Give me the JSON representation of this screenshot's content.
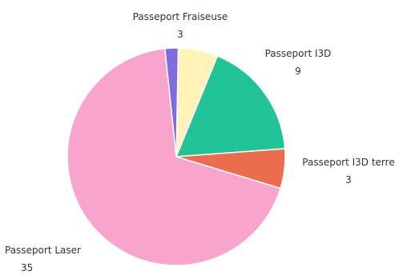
{
  "chart_data": {
    "type": "pie",
    "slices": [
      {
        "label": "Passeport Fraiseuse",
        "value": 3,
        "color": "#FFF3B8"
      },
      {
        "label": "Passeport I3D",
        "value": 9,
        "color": "#20C497"
      },
      {
        "label": "Passeport I3D terre",
        "value": 3,
        "color": "#EB6D4E"
      },
      {
        "label": "Passeport Laser",
        "value": 35,
        "color": "#F8A4CD"
      },
      {
        "label": "",
        "value": 1,
        "color": "#7E6CE0"
      }
    ]
  }
}
